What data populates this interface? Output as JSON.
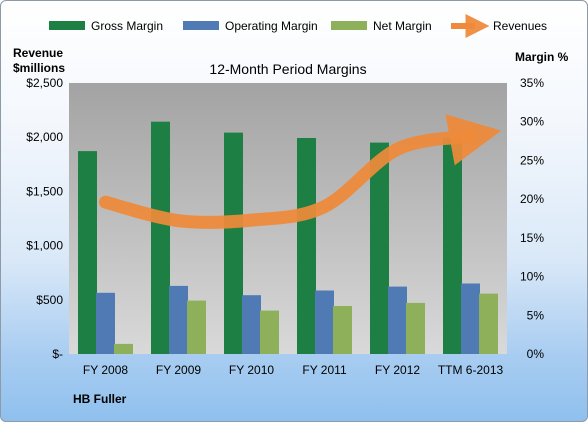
{
  "chart_data": {
    "type": "bar",
    "title": "12-Month Period Margins",
    "company": "HB Fuller",
    "categories": [
      "FY 2008",
      "FY 2009",
      "FY 2010",
      "FY 2011",
      "FY 2012",
      "TTM 6-2013"
    ],
    "series": [
      {
        "name": "Gross Margin",
        "axis": "right",
        "values": [
          26.2,
          30.0,
          28.6,
          27.9,
          27.3,
          27.9
        ],
        "color": "#1e7f45"
      },
      {
        "name": "Operating Margin",
        "axis": "right",
        "values": [
          7.9,
          8.8,
          7.6,
          8.2,
          8.7,
          9.1
        ],
        "color": "#4f7ab4"
      },
      {
        "name": "Net Margin",
        "axis": "right",
        "values": [
          1.3,
          6.9,
          5.6,
          6.2,
          6.6,
          7.8
        ],
        "color": "#8fb05a"
      },
      {
        "name": "Revenues",
        "axis": "left",
        "type": "line",
        "values": [
          1400,
          1230,
          1235,
          1360,
          1890,
          2010
        ],
        "color": "#ee8a3a"
      }
    ],
    "ylabel_left": "Revenue\n$millions",
    "ylabel_right": "Margin %",
    "ylim_left": [
      0,
      2500
    ],
    "ylim_right": [
      0,
      35
    ],
    "yticks_left": [
      "$-",
      "$500",
      "$1,000",
      "$1,500",
      "$2,000",
      "$2,500"
    ],
    "yticks_right": [
      "0%",
      "5%",
      "10%",
      "15%",
      "20%",
      "25%",
      "30%",
      "35%"
    ],
    "grid": false,
    "legend_position": "top"
  }
}
